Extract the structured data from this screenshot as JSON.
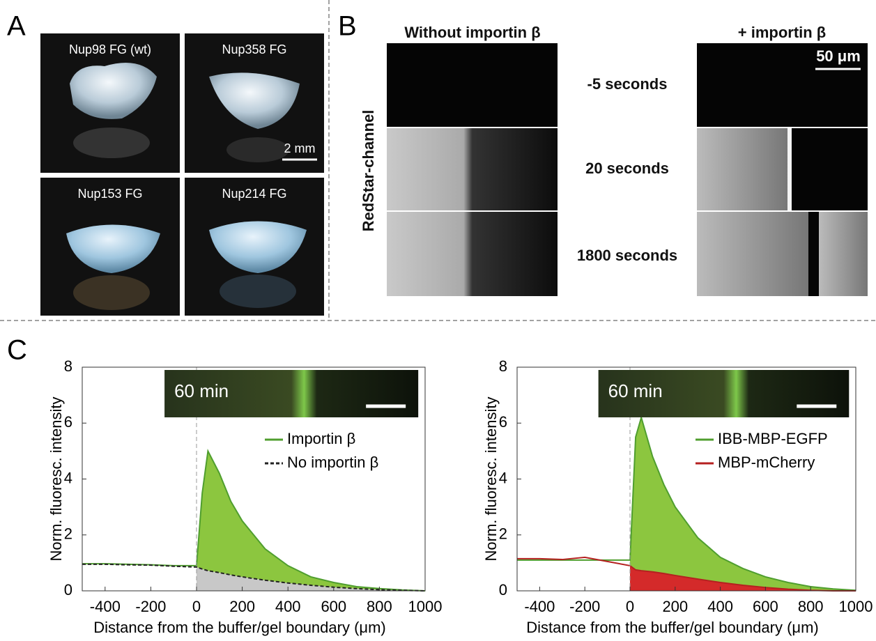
{
  "panel_a": {
    "label": "A",
    "tiles": [
      "Nup98 FG (wt)",
      "Nup358 FG",
      "Nup153 FG",
      "Nup214 FG"
    ],
    "scale_bar": "2 mm"
  },
  "panel_b": {
    "label": "B",
    "columns": [
      "Without importin β",
      "+ importin β"
    ],
    "channel": "RedStar-channel",
    "rows": [
      "-5 seconds",
      "20 seconds",
      "1800 seconds"
    ],
    "scale_bar": "50 μm"
  },
  "panel_c": {
    "label": "C"
  },
  "chart_data": [
    {
      "type": "area",
      "inset_label": "60 min",
      "ylabel": "Norm. fluoresc. intensity",
      "xlabel": "Distance from the buffer/gel boundary (μm)",
      "x": [
        -500,
        -400,
        -300,
        -200,
        -100,
        0,
        25,
        50,
        100,
        150,
        200,
        300,
        400,
        500,
        600,
        700,
        800,
        900,
        1000
      ],
      "series": [
        {
          "name": "Importin β",
          "color": "#4f9e2e",
          "fill": "#8cc63f",
          "dash": false,
          "values": [
            0.97,
            0.97,
            0.95,
            0.93,
            0.9,
            0.9,
            3.5,
            5.0,
            4.2,
            3.2,
            2.5,
            1.5,
            0.9,
            0.5,
            0.3,
            0.15,
            0.08,
            0.03,
            0
          ]
        },
        {
          "name": "No importin β",
          "color": "#222222",
          "fill": "#c8c8c8",
          "dash": true,
          "values": [
            0.95,
            0.95,
            0.93,
            0.92,
            0.88,
            0.85,
            0.78,
            0.72,
            0.65,
            0.57,
            0.5,
            0.38,
            0.28,
            0.2,
            0.13,
            0.08,
            0.04,
            0.02,
            0
          ]
        }
      ],
      "boundary": 0,
      "xlim": [
        -500,
        1000
      ],
      "ylim": [
        0,
        8
      ],
      "xticks": [
        -400,
        -200,
        0,
        200,
        400,
        600,
        800,
        1000
      ],
      "yticks": [
        0,
        2,
        4,
        6,
        8
      ],
      "legend": "upper right"
    },
    {
      "type": "area",
      "inset_label": "60 min",
      "ylabel": "Norm. fluoresc. intensity",
      "xlabel": "Distance from the buffer/gel boundary (μm)",
      "x": [
        -500,
        -400,
        -300,
        -200,
        -100,
        0,
        25,
        50,
        100,
        150,
        200,
        300,
        400,
        500,
        600,
        700,
        800,
        900,
        1000
      ],
      "series": [
        {
          "name": "IBB-MBP-EGFP",
          "color": "#4f9e2e",
          "fill": "#8cc63f",
          "dash": false,
          "values": [
            1.1,
            1.1,
            1.1,
            1.1,
            1.1,
            1.1,
            5.5,
            6.2,
            4.8,
            3.8,
            3.0,
            1.9,
            1.2,
            0.8,
            0.5,
            0.3,
            0.15,
            0.07,
            0.02
          ]
        },
        {
          "name": "MBP-mCherry",
          "color": "#b52020",
          "fill": "#d42a2a",
          "dash": false,
          "values": [
            1.15,
            1.15,
            1.12,
            1.2,
            1.05,
            0.9,
            0.75,
            0.72,
            0.68,
            0.62,
            0.55,
            0.42,
            0.3,
            0.2,
            0.12,
            0.06,
            0.02,
            0,
            0
          ]
        }
      ],
      "boundary": 0,
      "xlim": [
        -500,
        1000
      ],
      "ylim": [
        0,
        8
      ],
      "xticks": [
        -400,
        -200,
        0,
        200,
        400,
        600,
        800,
        1000
      ],
      "yticks": [
        0,
        2,
        4,
        6,
        8
      ],
      "legend": "upper right"
    }
  ]
}
